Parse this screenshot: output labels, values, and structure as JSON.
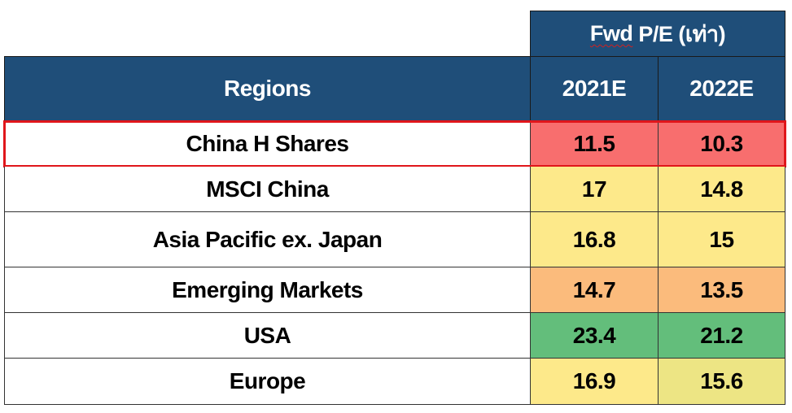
{
  "chart_data": {
    "type": "table",
    "group_header": "Fwd P/E (เท่า)",
    "group_header_underlined_word": "Fwd",
    "group_header_rest": " P/E (เท่า)",
    "columns": [
      "Regions",
      "2021E",
      "2022E"
    ],
    "rows": [
      {
        "region": "China H Shares",
        "v2021": "11.5",
        "v2022": "10.3",
        "color2021": "#f86e6e",
        "color2022": "#f86e6e",
        "highlighted": true
      },
      {
        "region": "MSCI China",
        "v2021": "17",
        "v2022": "14.8",
        "color2021": "#fde98a",
        "color2022": "#fde98a",
        "highlighted": false
      },
      {
        "region": "Asia Pacific ex. Japan",
        "v2021": "16.8",
        "v2022": "15",
        "color2021": "#fde98a",
        "color2022": "#fde98a",
        "highlighted": false
      },
      {
        "region": "Emerging Markets",
        "v2021": "14.7",
        "v2022": "13.5",
        "color2021": "#fbbb7c",
        "color2022": "#fbbb7c",
        "highlighted": false
      },
      {
        "region": "USA",
        "v2021": "23.4",
        "v2022": "21.2",
        "color2021": "#63be7b",
        "color2022": "#63be7b",
        "highlighted": false
      },
      {
        "region": "Europe",
        "v2021": "16.9",
        "v2022": "15.6",
        "color2021": "#fde98a",
        "color2022": "#ede584",
        "highlighted": false
      }
    ],
    "header_color": "#1f4e79",
    "highlight_color": "#e0161b"
  }
}
